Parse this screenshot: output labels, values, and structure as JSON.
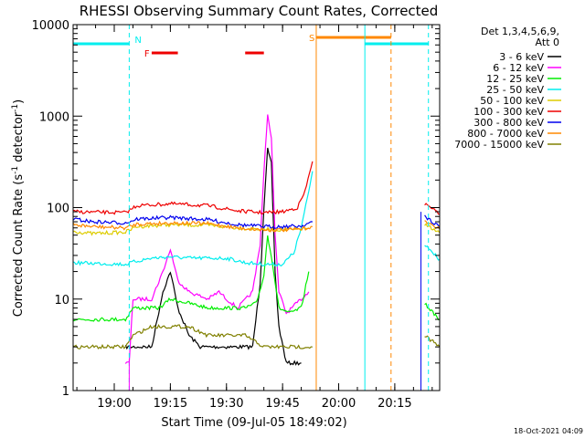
{
  "chart_data": {
    "type": "line",
    "title": "RHESSI Observing Summary Count Rates, Corrected",
    "xlabel": "Start Time (09-Jul-05 18:49:02)",
    "ylabel_main": "Corrected Count Rate (s",
    "ylabel_sup1": "-1",
    "ylabel_mid": " detector",
    "ylabel_sup2": "-1",
    "ylabel_end": ")",
    "y_scale": "log",
    "ylim": [
      1,
      10000
    ],
    "xlim": [
      "18:49",
      "20:27"
    ],
    "x_ticks": [
      "19:00",
      "19:15",
      "19:30",
      "19:45",
      "20:00",
      "20:15"
    ],
    "y_ticks": [
      "1",
      "10",
      "100",
      "1000",
      "10000"
    ],
    "legend_header": [
      "Det 1,3,4,5,6,9,",
      "Att 0"
    ],
    "series": [
      {
        "name": "3 - 6 keV",
        "color": "#000000",
        "points": [
          [
            "19:03",
            3
          ],
          [
            "19:10",
            3
          ],
          [
            "19:13",
            12
          ],
          [
            "19:15",
            20
          ],
          [
            "19:17",
            8
          ],
          [
            "19:20",
            4
          ],
          [
            "19:23",
            3
          ],
          [
            "19:30",
            3
          ],
          [
            "19:37",
            3
          ],
          [
            "19:39",
            15
          ],
          [
            "19:40",
            100
          ],
          [
            "19:41",
            430
          ],
          [
            "19:42",
            300
          ],
          [
            "19:43",
            20
          ],
          [
            "19:44",
            5
          ],
          [
            "19:46",
            2
          ],
          [
            "19:50",
            2
          ]
        ]
      },
      {
        "name": "6 - 12 keV",
        "color": "#ff00ff",
        "points": [
          [
            "19:03",
            2
          ],
          [
            "19:04",
            2
          ],
          [
            "19:05",
            10
          ],
          [
            "19:10",
            10
          ],
          [
            "19:13",
            20
          ],
          [
            "19:15",
            35
          ],
          [
            "19:17",
            16
          ],
          [
            "19:20",
            12
          ],
          [
            "19:25",
            10
          ],
          [
            "19:28",
            12
          ],
          [
            "19:30",
            10
          ],
          [
            "19:33",
            8
          ],
          [
            "19:37",
            12
          ],
          [
            "19:39",
            40
          ],
          [
            "19:40",
            250
          ],
          [
            "19:41",
            1000
          ],
          [
            "19:42",
            600
          ],
          [
            "19:43",
            50
          ],
          [
            "19:44",
            12
          ],
          [
            "19:46",
            7
          ],
          [
            "19:50",
            10
          ],
          [
            "19:52",
            12
          ]
        ]
      },
      {
        "name": "12 - 25 keV",
        "color": "#00ee00",
        "points": [
          [
            "18:49",
            6
          ],
          [
            "19:00",
            6
          ],
          [
            "19:03",
            6
          ],
          [
            "19:05",
            8
          ],
          [
            "19:12",
            8
          ],
          [
            "19:15",
            10
          ],
          [
            "19:20",
            9
          ],
          [
            "19:25",
            8
          ],
          [
            "19:30",
            8
          ],
          [
            "19:35",
            8
          ],
          [
            "19:38",
            9
          ],
          [
            "19:40",
            18
          ],
          [
            "19:41",
            50
          ],
          [
            "19:42",
            30
          ],
          [
            "19:44",
            8
          ],
          [
            "19:47",
            7
          ],
          [
            "19:50",
            8
          ],
          [
            "19:52",
            20
          ]
        ]
      },
      {
        "name": "25 - 50 keV",
        "color": "#00eeee",
        "points": [
          [
            "18:49",
            25
          ],
          [
            "19:03",
            24
          ],
          [
            "19:06",
            26
          ],
          [
            "19:10",
            28
          ],
          [
            "19:15",
            29
          ],
          [
            "19:20",
            28
          ],
          [
            "19:25",
            28
          ],
          [
            "19:30",
            28
          ],
          [
            "19:35",
            25
          ],
          [
            "19:40",
            24
          ],
          [
            "19:45",
            24
          ],
          [
            "19:48",
            32
          ],
          [
            "19:50",
            60
          ],
          [
            "19:52",
            150
          ],
          [
            "19:53",
            250
          ]
        ]
      },
      {
        "name": "50 - 100 keV",
        "color": "#ddcc00",
        "points": [
          [
            "18:49",
            55
          ],
          [
            "18:54",
            52
          ],
          [
            "19:03",
            54
          ],
          [
            "19:06",
            62
          ],
          [
            "19:15",
            65
          ],
          [
            "19:25",
            64
          ],
          [
            "19:33",
            60
          ],
          [
            "19:40",
            58
          ],
          [
            "19:48",
            57
          ],
          [
            "19:52",
            60
          ]
        ]
      },
      {
        "name": "100 - 300 keV",
        "color": "#ee0000",
        "points": [
          [
            "18:49",
            90
          ],
          [
            "19:03",
            88
          ],
          [
            "19:06",
            105
          ],
          [
            "19:15",
            110
          ],
          [
            "19:25",
            105
          ],
          [
            "19:33",
            92
          ],
          [
            "19:40",
            88
          ],
          [
            "19:45",
            90
          ],
          [
            "19:49",
            100
          ],
          [
            "19:51",
            150
          ],
          [
            "19:53",
            320
          ]
        ]
      },
      {
        "name": "300 - 800 keV",
        "color": "#0000ee",
        "points": [
          [
            "18:49",
            75
          ],
          [
            "18:54",
            70
          ],
          [
            "19:03",
            68
          ],
          [
            "19:06",
            75
          ],
          [
            "19:15",
            78
          ],
          [
            "19:25",
            74
          ],
          [
            "19:33",
            65
          ],
          [
            "19:40",
            62
          ],
          [
            "19:45",
            62
          ],
          [
            "19:50",
            63
          ],
          [
            "19:53",
            70
          ]
        ]
      },
      {
        "name": "800 - 7000 keV",
        "color": "#ff8800",
        "points": [
          [
            "18:49",
            65
          ],
          [
            "18:54",
            62
          ],
          [
            "19:03",
            60
          ],
          [
            "19:06",
            66
          ],
          [
            "19:15",
            68
          ],
          [
            "19:25",
            67
          ],
          [
            "19:33",
            60
          ],
          [
            "19:40",
            57
          ],
          [
            "19:45",
            57
          ],
          [
            "19:50",
            58
          ],
          [
            "19:53",
            62
          ]
        ]
      },
      {
        "name": "7000 - 15000 keV",
        "color": "#808000",
        "points": [
          [
            "18:49",
            3
          ],
          [
            "18:55",
            3
          ],
          [
            "19:03",
            3
          ],
          [
            "19:05",
            4
          ],
          [
            "19:10",
            5
          ],
          [
            "19:20",
            5
          ],
          [
            "19:25",
            4
          ],
          [
            "19:30",
            4
          ],
          [
            "19:35",
            4
          ],
          [
            "19:40",
            3
          ],
          [
            "19:45",
            3
          ],
          [
            "19:50",
            3
          ],
          [
            "19:53",
            3
          ]
        ]
      }
    ],
    "after_gap_series": [
      {
        "name": "100 - 300 keV",
        "points": [
          [
            "20:23",
            110
          ],
          [
            "20:27",
            85
          ]
        ]
      },
      {
        "name": "300 - 800 keV",
        "points": [
          [
            "20:23",
            80
          ],
          [
            "20:27",
            62
          ]
        ]
      },
      {
        "name": "800 - 7000 keV",
        "points": [
          [
            "20:23",
            70
          ],
          [
            "20:27",
            58
          ]
        ]
      },
      {
        "name": "50 - 100 keV",
        "points": [
          [
            "20:23",
            65
          ],
          [
            "20:27",
            53
          ]
        ]
      },
      {
        "name": "25 - 50 keV",
        "points": [
          [
            "20:23",
            40
          ],
          [
            "20:27",
            27
          ]
        ]
      },
      {
        "name": "12 - 25 keV",
        "points": [
          [
            "20:23",
            9
          ],
          [
            "20:27",
            6
          ]
        ]
      },
      {
        "name": "7000 - 15000 keV",
        "points": [
          [
            "20:23",
            4
          ],
          [
            "20:27",
            3
          ]
        ]
      }
    ],
    "flags": [
      {
        "label": "N",
        "color": "#00eeee",
        "start": "18:49",
        "end": "19:04",
        "level": "top"
      },
      {
        "label": "F",
        "color": "#ee0000",
        "start": "19:10",
        "end": "19:17",
        "level": "mid"
      },
      {
        "label": "",
        "color": "#ee0000",
        "start": "19:35",
        "end": "19:40",
        "level": "mid"
      },
      {
        "label": "S",
        "color": "#ff8800",
        "start": "19:54",
        "end": "20:14",
        "level": "s"
      },
      {
        "label": "",
        "color": "#00eeee",
        "start": "20:07",
        "end": "20:24",
        "level": "top"
      }
    ],
    "vertical_lines": [
      {
        "t": "18:49",
        "color": "#00eeee",
        "style": "solid"
      },
      {
        "t": "19:04",
        "color": "#00eeee",
        "style": "dashed"
      },
      {
        "t": "19:54",
        "color": "#ff8800",
        "style": "solid"
      },
      {
        "t": "20:07",
        "color": "#00eeee",
        "style": "solid"
      },
      {
        "t": "20:14",
        "color": "#ff8800",
        "style": "dashed"
      },
      {
        "t": "20:24",
        "color": "#00eeee",
        "style": "dashed"
      },
      {
        "t": "20:22",
        "color": "#0000ee",
        "style": "solid"
      },
      {
        "t": "19:04",
        "color": "#ff00ff",
        "style": "solid"
      }
    ]
  },
  "footer_date": "18-Oct-2021 04:09"
}
